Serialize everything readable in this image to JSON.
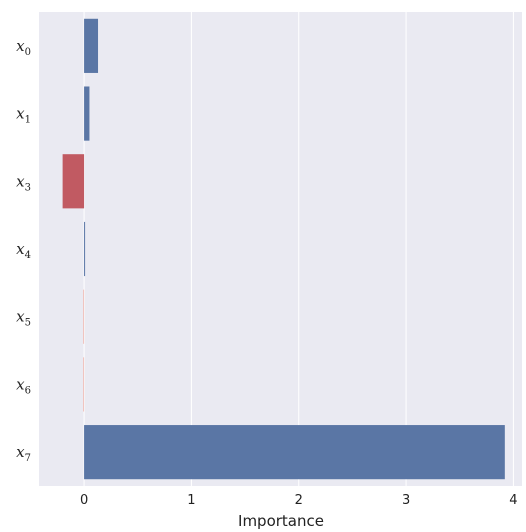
{
  "chart_data": {
    "type": "bar",
    "orientation": "horizontal",
    "title": "",
    "xlabel": "Importance",
    "ylabel": "",
    "grid": true,
    "xlim": [
      -0.42,
      4.08
    ],
    "xticks": [
      0,
      1,
      2,
      3,
      4
    ],
    "categories": [
      {
        "base": "x",
        "sub": "0"
      },
      {
        "base": "x",
        "sub": "1"
      },
      {
        "base": "x",
        "sub": "3"
      },
      {
        "base": "x",
        "sub": "4"
      },
      {
        "base": "x",
        "sub": "5"
      },
      {
        "base": "x",
        "sub": "6"
      },
      {
        "base": "x",
        "sub": "7"
      }
    ],
    "values": [
      0.13,
      0.05,
      -0.2,
      0.0,
      -0.01,
      -0.01,
      3.92
    ],
    "colors": {
      "positive": "#5a76a5",
      "negative": "#c15a62",
      "negative_light": "#f0c4c0",
      "background": "#eaeaf2",
      "grid": "#ffffff"
    }
  }
}
